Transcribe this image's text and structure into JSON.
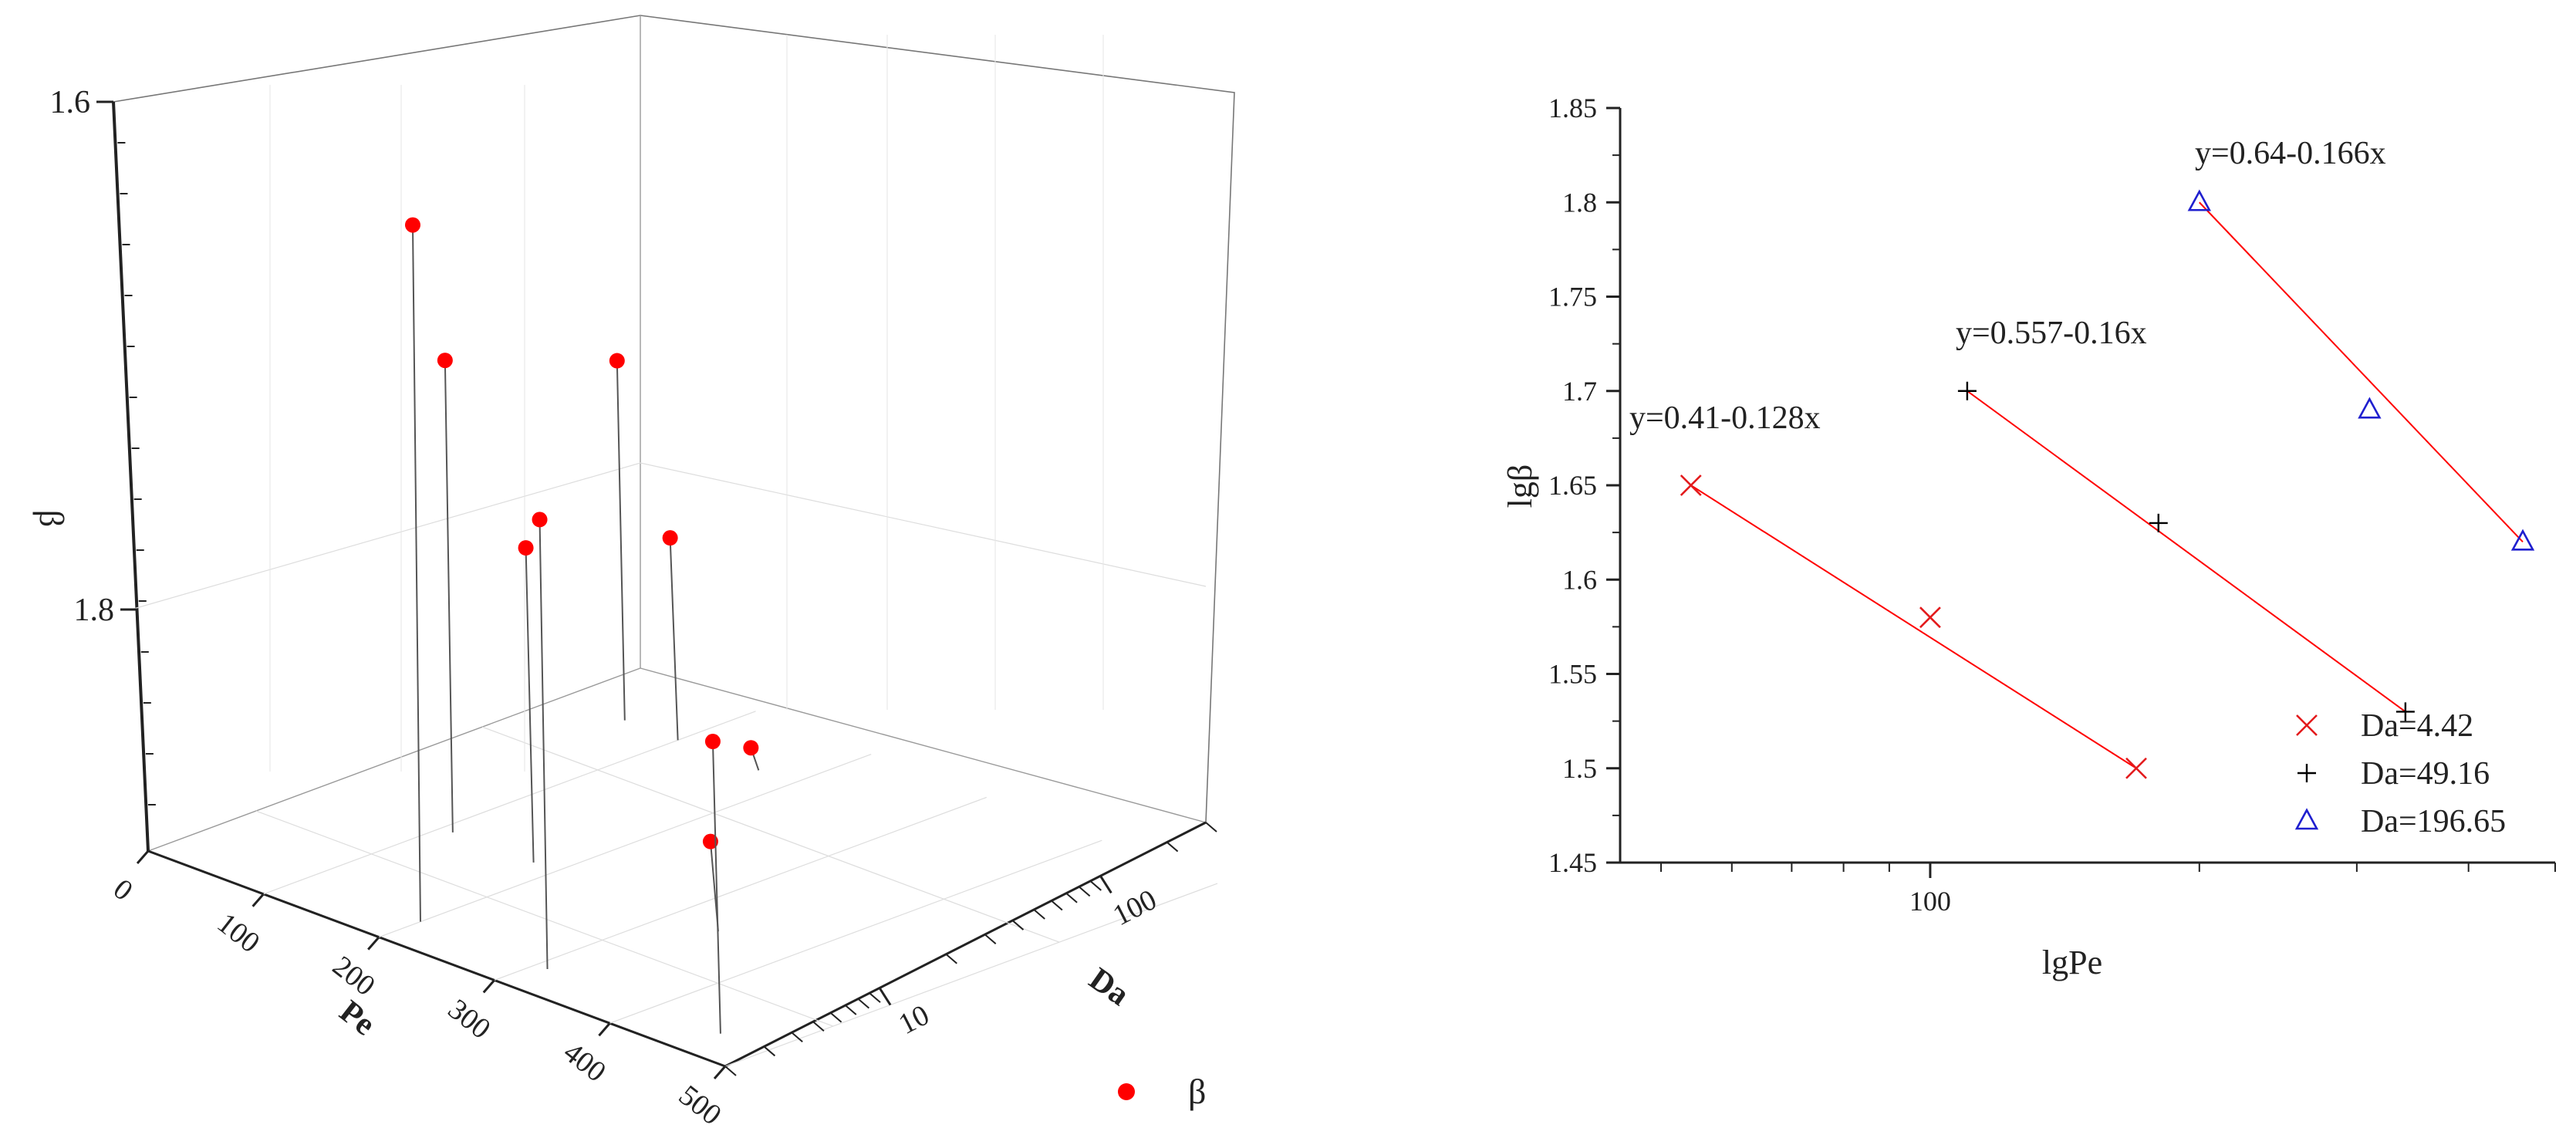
{
  "chart_data": [
    {
      "type": "scatter",
      "variant": "3d-drop-line",
      "axes": {
        "x": {
          "label": "Pe",
          "ticks": [
            "0",
            "100",
            "200",
            "300",
            "400",
            "500"
          ],
          "range": [
            0,
            500
          ]
        },
        "y": {
          "label": "Da",
          "ticks": [
            "10",
            "100"
          ],
          "scale": "log",
          "range": [
            2,
            300
          ]
        },
        "z": {
          "label": "β",
          "ticks": [
            "1.6",
            "1.8"
          ],
          "range": [
            1.49,
            1.8
          ]
        }
      },
      "grid": true,
      "legend": {
        "entries": [
          "β"
        ],
        "placement": "bottom-right"
      },
      "points": [
        {
          "pe": 54,
          "da": 4.42,
          "beta": 1.65
        },
        {
          "pe": 100,
          "da": 4.42,
          "beta": 1.58
        },
        {
          "pe": 170,
          "da": 4.42,
          "beta": 1.5
        },
        {
          "pe": 110,
          "da": 49.16,
          "beta": 1.7
        },
        {
          "pe": 180,
          "da": 49.16,
          "beta": 1.63
        },
        {
          "pe": 340,
          "da": 49.16,
          "beta": 1.53
        },
        {
          "pe": 200,
          "da": 196.65,
          "beta": 1.8
        },
        {
          "pe": 310,
          "da": 196.65,
          "beta": 1.69
        },
        {
          "pe": 460,
          "da": 196.65,
          "beta": 1.62
        }
      ]
    },
    {
      "type": "scatter",
      "xlabel": "lgPe",
      "ylabel": "lgβ",
      "xscale": "log",
      "xlim": [
        45,
        500
      ],
      "ylim": [
        1.45,
        1.85
      ],
      "yticks": [
        "1.45",
        "1.5",
        "1.55",
        "1.6",
        "1.65",
        "1.7",
        "1.75",
        "1.8",
        "1.85"
      ],
      "xticks": [
        "100"
      ],
      "legend_placement": "bottom-right",
      "series": [
        {
          "name": "Da=4.42",
          "marker": "x",
          "color": "#e31a1c",
          "points": [
            [
              54,
              1.65
            ],
            [
              100,
              1.58
            ],
            [
              170,
              1.5
            ]
          ],
          "fit": "y=0.41-0.128x",
          "fit_color": "#ff0000"
        },
        {
          "name": "Da=49.16",
          "marker": "+",
          "color": "#000000",
          "points": [
            [
              110,
              1.7
            ],
            [
              180,
              1.63
            ],
            [
              340,
              1.53
            ]
          ],
          "fit": "y=0.557-0.16x",
          "fit_color": "#ff0000"
        },
        {
          "name": "Da=196.65",
          "marker": "triangle",
          "color": "#1f1fcf",
          "points": [
            [
              200,
              1.8
            ],
            [
              310,
              1.69
            ],
            [
              460,
              1.62
            ]
          ],
          "fit": "y=0.64-0.166x",
          "fit_color": "#ff0000"
        }
      ]
    }
  ]
}
